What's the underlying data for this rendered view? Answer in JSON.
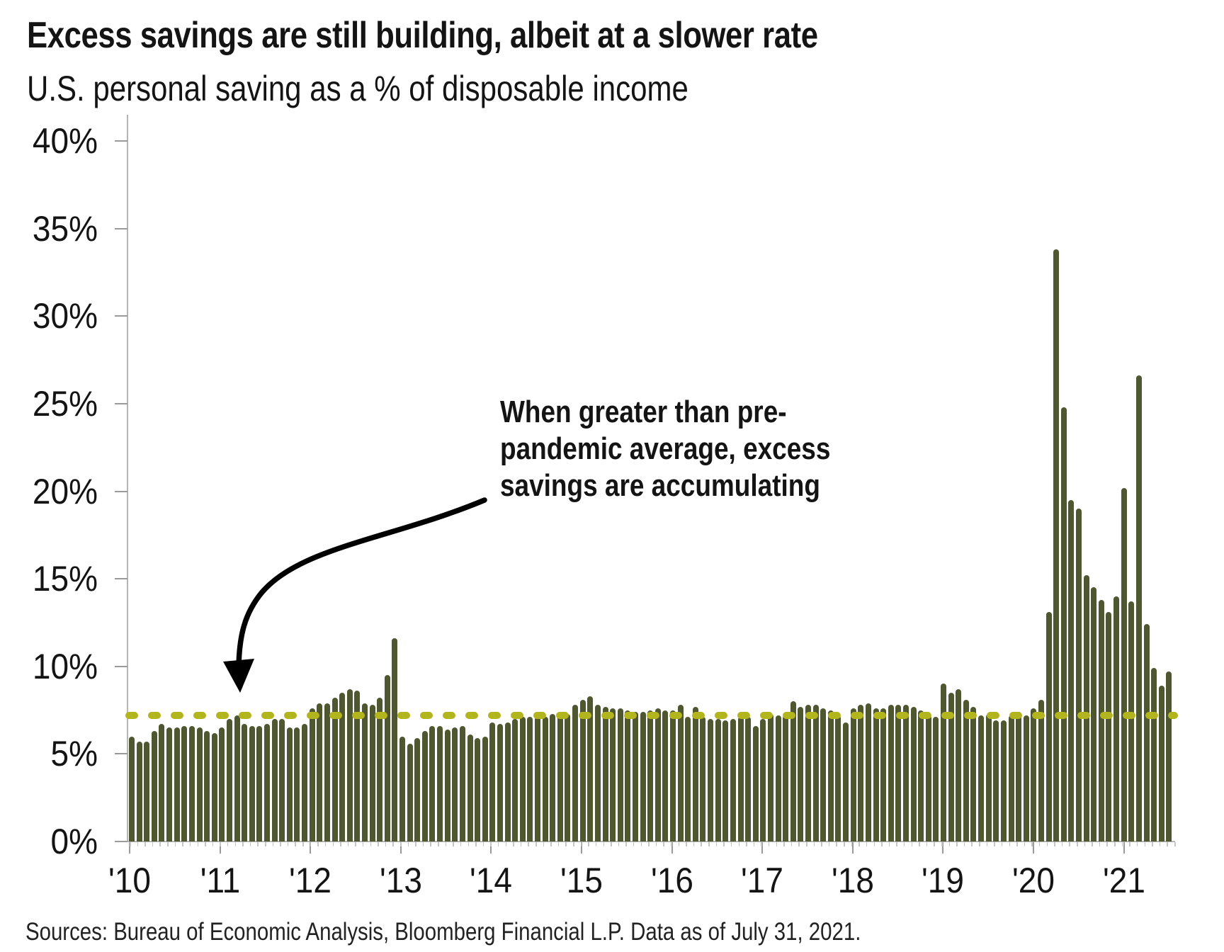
{
  "title": "Excess savings are still building, albeit at a slower rate",
  "subtitle": "U.S. personal saving as a % of disposable income",
  "annotation": {
    "line1": "When greater than pre-",
    "line2": "pandemic average, excess",
    "line3": "savings are accumulating"
  },
  "source": "Sources: Bureau of Economic Analysis, Bloomberg Financial L.P. Data as of July 31, 2021.",
  "colors": {
    "bar": "#4e5730",
    "average_line": "#b2b51d",
    "axis": "#b5b5b5",
    "tick": "#9a9a9a",
    "arrow": "#000000",
    "text": "#141414"
  },
  "chart_data": {
    "type": "bar",
    "title": "Excess savings are still building, albeit at a slower rate",
    "subtitle": "U.S. personal saving as a % of disposable income",
    "unit": "%",
    "ylim": [
      0,
      40
    ],
    "grid": false,
    "y_ticks": [
      0,
      5,
      10,
      15,
      20,
      25,
      30,
      35,
      40
    ],
    "y_tick_labels": [
      "0%",
      "5%",
      "10%",
      "15%",
      "20%",
      "25%",
      "30%",
      "35%",
      "40%"
    ],
    "x_tick_labels": [
      "'10",
      "'11",
      "'12",
      "'13",
      "'14",
      "'15",
      "'16",
      "'17",
      "'18",
      "'19",
      "'20",
      "'21"
    ],
    "start_month": "2010-01",
    "end_month": "2021-07",
    "frequency": "monthly",
    "pre_pandemic_average": 7.2,
    "values": [
      6.0,
      5.7,
      5.7,
      6.3,
      6.7,
      6.5,
      6.5,
      6.6,
      6.6,
      6.5,
      6.3,
      6.2,
      6.5,
      7.0,
      7.2,
      6.7,
      6.6,
      6.6,
      6.7,
      7.0,
      7.0,
      6.5,
      6.5,
      6.7,
      7.6,
      7.9,
      7.9,
      8.2,
      8.5,
      8.7,
      8.6,
      7.9,
      7.8,
      8.2,
      9.5,
      11.6,
      6.0,
      5.6,
      5.9,
      6.3,
      6.6,
      6.6,
      6.4,
      6.5,
      6.6,
      6.1,
      5.9,
      6.0,
      6.8,
      6.7,
      6.8,
      7.0,
      7.1,
      7.1,
      7.1,
      7.1,
      7.3,
      7.2,
      7.3,
      7.8,
      8.1,
      8.3,
      7.8,
      7.7,
      7.6,
      7.6,
      7.5,
      7.4,
      7.4,
      7.5,
      7.6,
      7.5,
      7.5,
      7.8,
      7.1,
      7.7,
      7.1,
      7.0,
      7.0,
      6.9,
      7.0,
      7.1,
      7.1,
      6.6,
      7.0,
      7.3,
      7.2,
      7.2,
      8.0,
      7.7,
      7.8,
      7.8,
      7.6,
      7.5,
      7.2,
      6.8,
      7.6,
      7.8,
      7.9,
      7.6,
      7.6,
      7.8,
      7.8,
      7.8,
      7.7,
      7.5,
      7.2,
      7.1,
      9.0,
      8.5,
      8.7,
      8.1,
      7.7,
      7.2,
      7.3,
      6.9,
      6.9,
      7.2,
      7.4,
      7.2,
      7.6,
      8.1,
      13.1,
      33.8,
      24.8,
      19.5,
      19.0,
      15.2,
      14.5,
      13.8,
      13.1,
      14.0,
      20.2,
      13.7,
      26.6,
      12.4,
      9.9,
      8.9,
      9.7
    ]
  }
}
